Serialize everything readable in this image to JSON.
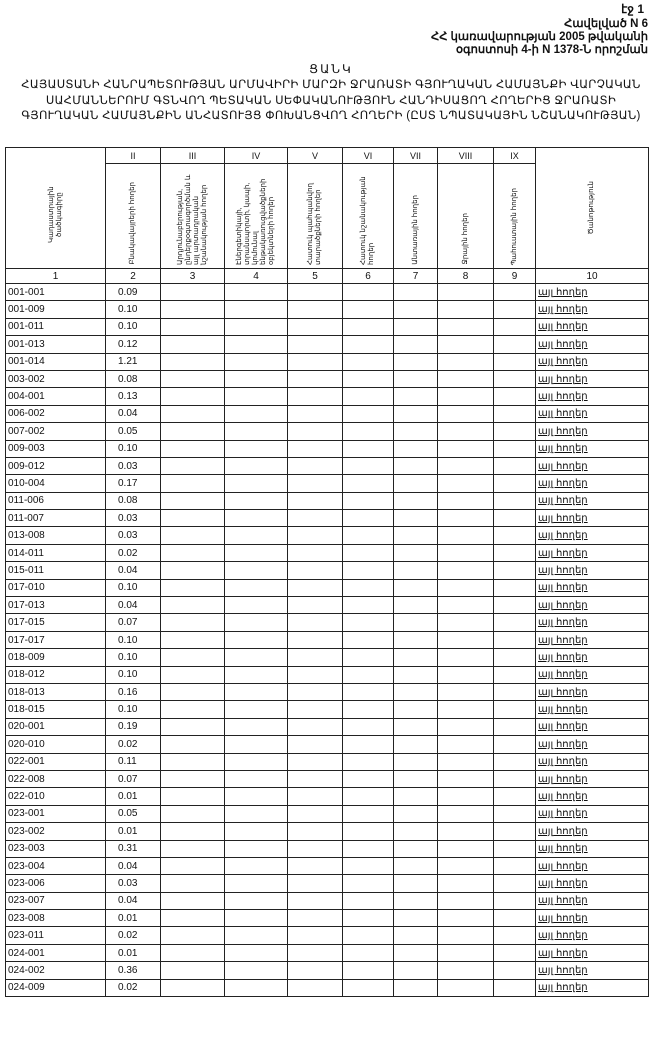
{
  "page_label": "էջ 1",
  "annex": [
    "Հավելված N 6",
    "ՀՀ կառավարության 2005 թվականի",
    "օգոստոսի 4-ի N 1378-Ն որոշման"
  ],
  "title_short": "ՑԱՆԿ",
  "title_full": "ՀԱՅԱՍՏԱՆԻ ՀԱՆՐԱՊԵՏՈՒԹՅԱՆ ԱՐՄԱՎԻՐԻ ՄԱՐԶԻ ՋՐԱՌԱՏԻ ԳՅՈՒՂԱԿԱՆ ՀԱՄԱՅՆՔԻ ՎԱՐՉԱԿԱՆ ՍԱՀՄԱՆՆԵՐՈՒՄ ԳՏՆՎՈՂ ՊԵՏԱԿԱՆ ՍԵՓԱԿԱՆՈՒԹՅՈՒՆ ՀԱՆԴԻՍԱՑՈՂ ՀՈՂԵՐԻՑ ՋՐԱՌԱՏԻ ԳՅՈՒՂԱԿԱՆ ՀԱՄԱՅՆՔԻՆ ԱՆՀԱՏՈՒՅՑ ՓՈԽԱՆՑՎՈՂ ՀՈՂԵՐԻ (ԸՍՏ ՆՊԱՏԱԿԱՅԻՆ ՆՇԱՆԱԿՈՒԹՅԱՆ)",
  "table": {
    "roman": [
      "",
      "II",
      "III",
      "IV",
      "V",
      "VI",
      "VII",
      "VIII",
      "IX",
      ""
    ],
    "headers": [
      "Կադաստրային ծածկագիրը",
      "Բնակավայրերի հողեր",
      "Արդյունաբերության, ընդերքօգտագործման և այլ արտադրական նշանակության հողեր",
      "Էներգետիկայի, տրանսպորտի, կապի, կոմունալ ենթակառուցվածքների օբյեկտների հողեր",
      "Հատուկ պահպանվող տարածքների հողեր",
      "Հատուկ նշանակության հողեր",
      "Անտառային հողեր",
      "Ջրային հողեր",
      "Պահուստային հողեր",
      "Ծանոթություն"
    ],
    "numbers": [
      "1",
      "2",
      "3",
      "4",
      "5",
      "6",
      "7",
      "8",
      "9",
      "10"
    ],
    "rows": [
      [
        "001-001",
        "0.09",
        "այլ հողեր"
      ],
      [
        "001-009",
        "0.10",
        "այլ հողեր"
      ],
      [
        "001-011",
        "0.10",
        "այլ հողեր"
      ],
      [
        "001-013",
        "0.12",
        "այլ հողեր"
      ],
      [
        "001-014",
        "1.21",
        "այլ հողեր"
      ],
      [
        "003-002",
        "0.08",
        "այլ հողեր"
      ],
      [
        "004-001",
        "0.13",
        "այլ հողեր"
      ],
      [
        "006-002",
        "0.04",
        "այլ հողեր"
      ],
      [
        "007-002",
        "0.05",
        "այլ հողեր"
      ],
      [
        "009-003",
        "0.10",
        "այլ հողեր"
      ],
      [
        "009-012",
        "0.03",
        "այլ հողեր"
      ],
      [
        "010-004",
        "0.17",
        "այլ հողեր"
      ],
      [
        "011-006",
        "0.08",
        "այլ հողեր"
      ],
      [
        "011-007",
        "0.03",
        "այլ հողեր"
      ],
      [
        "013-008",
        "0.03",
        "այլ հողեր"
      ],
      [
        "014-011",
        "0.02",
        "այլ հողեր"
      ],
      [
        "015-011",
        "0.04",
        "այլ հողեր"
      ],
      [
        "017-010",
        "0.10",
        "այլ հողեր"
      ],
      [
        "017-013",
        "0.04",
        "այլ հողեր"
      ],
      [
        "017-015",
        "0.07",
        "այլ հողեր"
      ],
      [
        "017-017",
        "0.10",
        "այլ հողեր"
      ],
      [
        "018-009",
        "0.10",
        "այլ հողեր"
      ],
      [
        "018-012",
        "0.10",
        "այլ հողեր"
      ],
      [
        "018-013",
        "0.16",
        "այլ հողեր"
      ],
      [
        "018-015",
        "0.10",
        "այլ հողեր"
      ],
      [
        "020-001",
        "0.19",
        "այլ հողեր"
      ],
      [
        "020-010",
        "0.02",
        "այլ հողեր"
      ],
      [
        "022-001",
        "0.11",
        "այլ հողեր"
      ],
      [
        "022-008",
        "0.07",
        "այլ հողեր"
      ],
      [
        "022-010",
        "0.01",
        "այլ հողեր"
      ],
      [
        "023-001",
        "0.05",
        "այլ հողեր"
      ],
      [
        "023-002",
        "0.01",
        "այլ հողեր"
      ],
      [
        "023-003",
        "0.31",
        "այլ հողեր"
      ],
      [
        "023-004",
        "0.04",
        "այլ հողեր"
      ],
      [
        "023-006",
        "0.03",
        "այլ հողեր"
      ],
      [
        "023-007",
        "0.04",
        "այլ հողեր"
      ],
      [
        "023-008",
        "0.01",
        "այլ հողեր"
      ],
      [
        "023-011",
        "0.02",
        "այլ հողեր"
      ],
      [
        "024-001",
        "0.01",
        "այլ հողեր"
      ],
      [
        "024-002",
        "0.36",
        "այլ հողեր"
      ],
      [
        "024-009",
        "0.02",
        "այլ հողեր"
      ]
    ]
  }
}
